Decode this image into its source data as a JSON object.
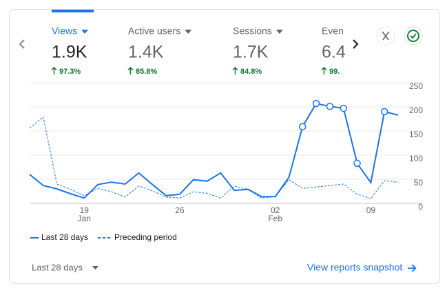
{
  "tabs": [
    {
      "label": "Views",
      "value": "1.9K",
      "change": "97.3%"
    },
    {
      "label": "Active users",
      "value": "1.4K",
      "change": "85.8%"
    },
    {
      "label": "Sessions",
      "value": "1.7K",
      "change": "84.8%"
    },
    {
      "label": "Even",
      "value": "6.4",
      "change": "99."
    }
  ],
  "chart_data": {
    "type": "line",
    "categories": [
      null,
      null,
      null,
      null,
      "19",
      null,
      null,
      null,
      null,
      null,
      null,
      "26",
      null,
      null,
      null,
      null,
      null,
      null,
      "02",
      null,
      null,
      null,
      null,
      null,
      null,
      "09",
      null,
      null
    ],
    "category_sublabels": [
      null,
      null,
      null,
      null,
      "Jan",
      null,
      null,
      null,
      null,
      null,
      null,
      null,
      null,
      null,
      null,
      null,
      null,
      null,
      "Feb",
      null,
      null,
      null,
      null,
      null,
      null,
      null,
      null,
      null
    ],
    "series": [
      {
        "name": "Last 28 days",
        "color": "#1a73e8",
        "dashed": false,
        "values": [
          60,
          37,
          30,
          20,
          11,
          39,
          44,
          40,
          63,
          39,
          16,
          19,
          49,
          46,
          63,
          27,
          29,
          14,
          14,
          54,
          159,
          207,
          201,
          197,
          83,
          43,
          190,
          183
        ],
        "marker_indices": [
          20,
          21,
          22,
          23,
          24,
          26
        ]
      },
      {
        "name": "Preceding period",
        "color": "#1a73e8",
        "dashed": true,
        "values": [
          156,
          179,
          40,
          29,
          16,
          31,
          24,
          13,
          36,
          26,
          13,
          11,
          24,
          21,
          11,
          36,
          29,
          11,
          14,
          49,
          31,
          34,
          37,
          40,
          19,
          10,
          47,
          44
        ]
      }
    ],
    "ylim": [
      0,
      250
    ],
    "yticks": [
      0,
      50,
      100,
      150,
      200,
      250
    ],
    "grid": true
  },
  "footer": {
    "range": "Last 28 days",
    "link": "View reports snapshot"
  }
}
